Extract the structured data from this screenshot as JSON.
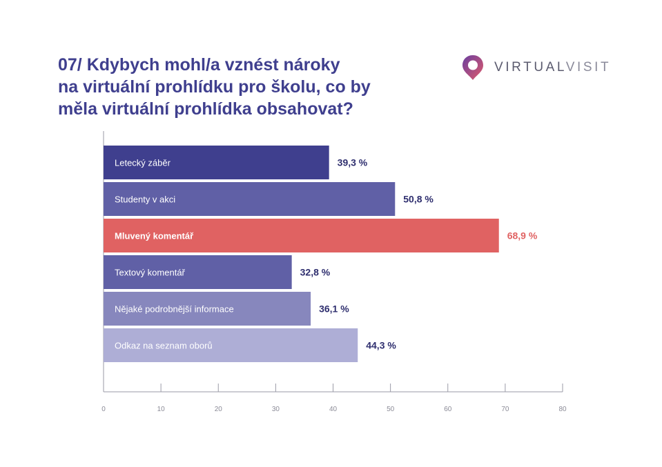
{
  "title_lines": [
    "07/ Kdybych mohl/a vznést nároky",
    "na virtuální prohlídku pro školu, co by",
    "měla virtuální prohlídka obsahovat?"
  ],
  "brand": {
    "name_part1": "VIRTUAL",
    "name_part2": "VISIT",
    "icon": "map-pin-logo-icon"
  },
  "chart_data": {
    "type": "bar",
    "orientation": "horizontal",
    "categories": [
      "Letecký záběr",
      "Studenty v akci",
      "Mluvený komentář",
      "Textový komentář",
      "Nějaké podrobnější informace",
      "Odkaz na seznam oborů"
    ],
    "values": [
      39.3,
      50.8,
      68.9,
      32.8,
      36.1,
      44.3
    ],
    "value_labels": [
      "39,3 %",
      "50,8 %",
      "68,9 %",
      "32,8 %",
      "36,1 %",
      "44,3 %"
    ],
    "bar_colors": [
      "#3f3f8e",
      "#6060a6",
      "#e06262",
      "#6060a6",
      "#8787bd",
      "#aeaed6"
    ],
    "highlight_index": 2,
    "highlight_color": "#e06262",
    "value_label_color": "#2e2e6e",
    "x_ticks": [
      0,
      10,
      20,
      30,
      40,
      50,
      60,
      70,
      80
    ],
    "xlim": [
      0,
      80
    ],
    "grid": false,
    "legend": "none"
  }
}
